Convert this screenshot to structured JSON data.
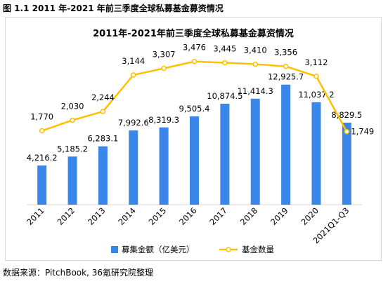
{
  "figure_label": "图 1.1 2011 年-2021 年前三季度全球私募基金募资情况",
  "source_note": "数据来源：PitchBook, 36氪研究院整理",
  "chart_data": {
    "type": "bar+line",
    "title": "2011年-2021年前三季度全球私募基金募资情况",
    "categories": [
      "2011",
      "2012",
      "2013",
      "2014",
      "2015",
      "2016",
      "2017",
      "2018",
      "2019",
      "2020",
      "2021Q1-Q3"
    ],
    "series": [
      {
        "name": "募集金额（亿美元）",
        "type": "bar",
        "color": "#3a86e9",
        "values": [
          4216.2,
          5185.2,
          6283.1,
          7992.6,
          8319.3,
          9505.4,
          10874.5,
          11414.3,
          12925.7,
          11037.2,
          8829.5
        ],
        "labels": [
          "4,216.2",
          "5,185.2",
          "6,283.1",
          "7,992.6",
          "8,319.3",
          "9,505.4",
          "10,874.5",
          "11,414.3",
          "12,925.7",
          "11,037.2",
          "8,829.5"
        ]
      },
      {
        "name": "基金数量",
        "type": "line",
        "color": "#ffc000",
        "values": [
          1770,
          2030,
          2244,
          3144,
          3307,
          3476,
          3445,
          3410,
          3356,
          3112,
          1749
        ],
        "labels": [
          "1,770",
          "2,030",
          "2,244",
          "3,144",
          "3,307",
          "3,476",
          "3,445",
          "3,410",
          "3,356",
          "3,112",
          "1,749"
        ]
      }
    ],
    "grid": false,
    "legend": "bottom"
  }
}
